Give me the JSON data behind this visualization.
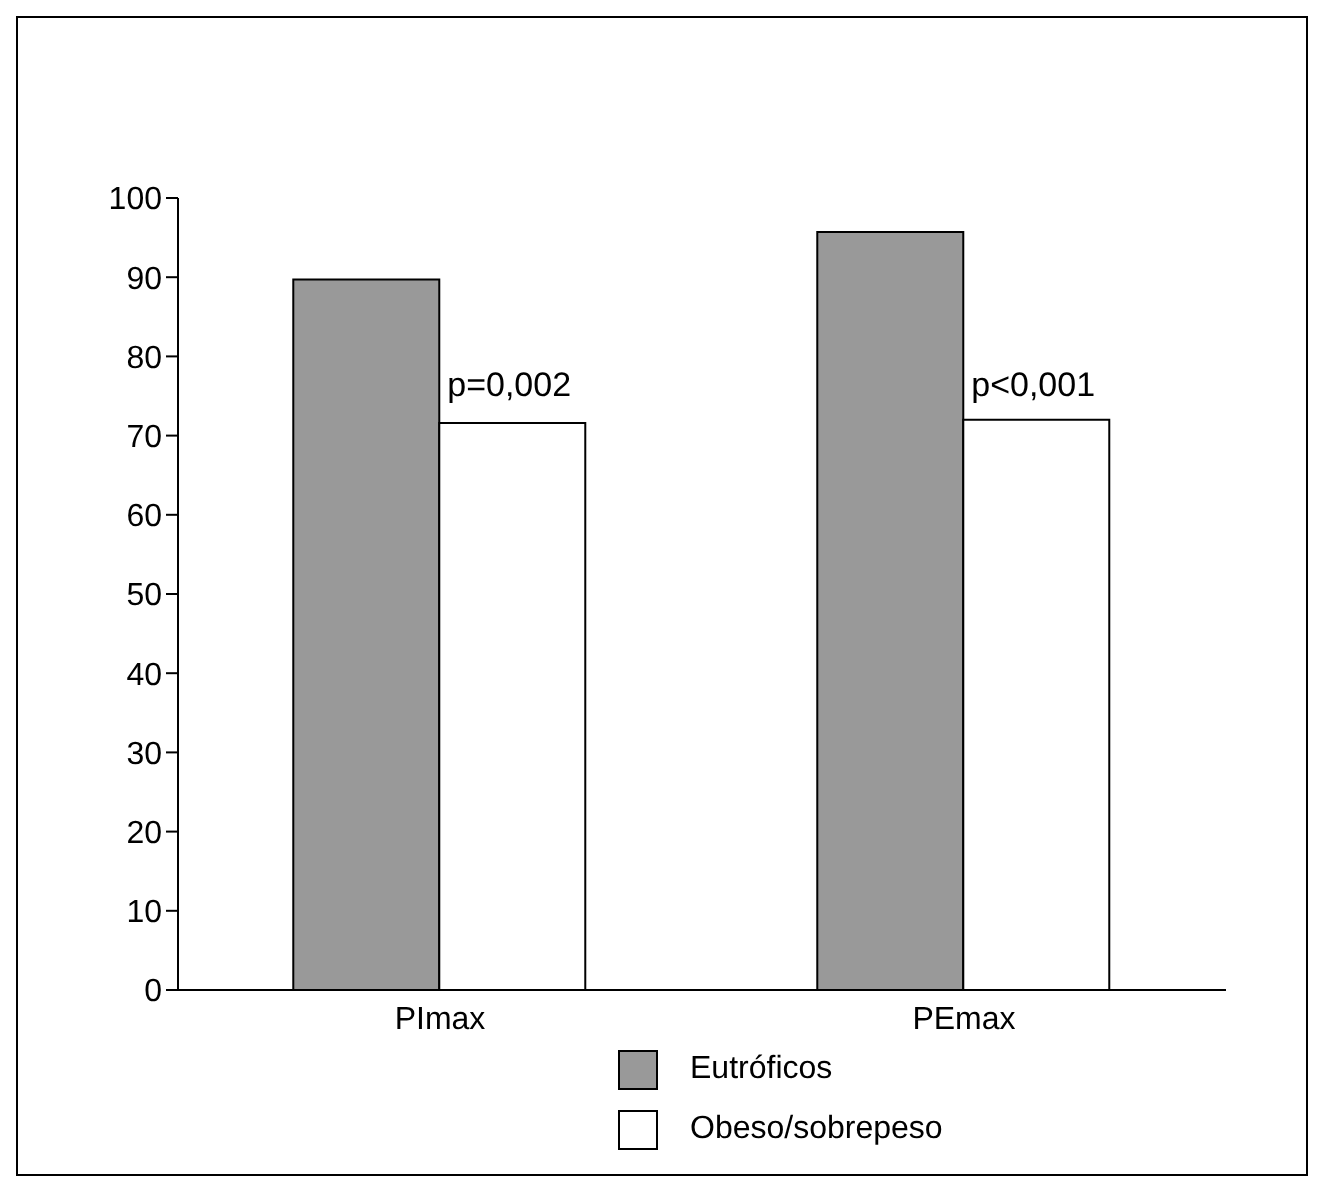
{
  "chart_data": {
    "type": "bar",
    "categories": [
      "PImax",
      "PEmax"
    ],
    "series": [
      {
        "name": "Eutróficos",
        "color": "#999999",
        "values": [
          89.7,
          95.7
        ]
      },
      {
        "name": "Obeso/sobrepeso",
        "color": "#ffffff",
        "values": [
          71.6,
          72.0
        ]
      }
    ],
    "ylim": [
      0,
      100
    ],
    "yticks": [
      0,
      10,
      20,
      30,
      40,
      50,
      60,
      70,
      80,
      90,
      100
    ],
    "grid": false,
    "legend": "bottom",
    "annotations": [
      {
        "text": "p=0,002",
        "x": "PImax",
        "y": 75
      },
      {
        "text": "p<0,001",
        "x": "PEmax",
        "y": 75
      }
    ]
  }
}
